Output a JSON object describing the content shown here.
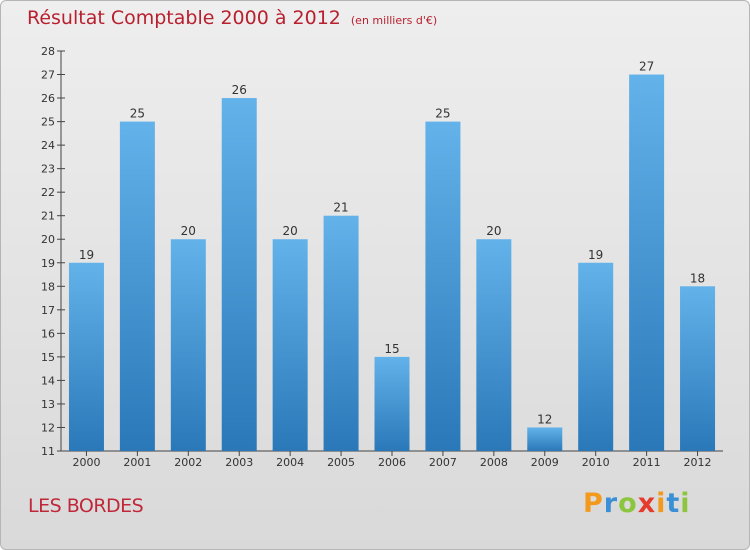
{
  "header": {
    "title": "Résultat Comptable 2000 à 2012",
    "unit": "(en milliers d'€)"
  },
  "commune": "LES BORDES",
  "logo": {
    "letters": [
      "P",
      "r",
      "o",
      "x",
      "i",
      "t",
      "i"
    ],
    "colors": [
      "#f39a1e",
      "#3a8fd6",
      "#8cc63e",
      "#e53b2c",
      "#f39a1e",
      "#3a8fd6",
      "#8cc63e"
    ]
  },
  "colors": {
    "bar_light": "#63b2ea",
    "bar_dark": "#2a78b8",
    "title": "#b8202f"
  },
  "chart_data": {
    "type": "bar",
    "title": "Résultat Comptable 2000 à 2012",
    "subtitle": "(en milliers d'€)",
    "categories": [
      "2000",
      "2001",
      "2002",
      "2003",
      "2004",
      "2005",
      "2006",
      "2007",
      "2008",
      "2009",
      "2010",
      "2011",
      "2012"
    ],
    "values": [
      19,
      25,
      20,
      26,
      20,
      21,
      15,
      25,
      20,
      12,
      19,
      27,
      18
    ],
    "ylim": [
      11,
      28
    ],
    "yticks": [
      11,
      12,
      13,
      14,
      15,
      16,
      17,
      18,
      19,
      20,
      21,
      22,
      23,
      24,
      25,
      26,
      27,
      28
    ],
    "grid": false,
    "legend": "none"
  }
}
